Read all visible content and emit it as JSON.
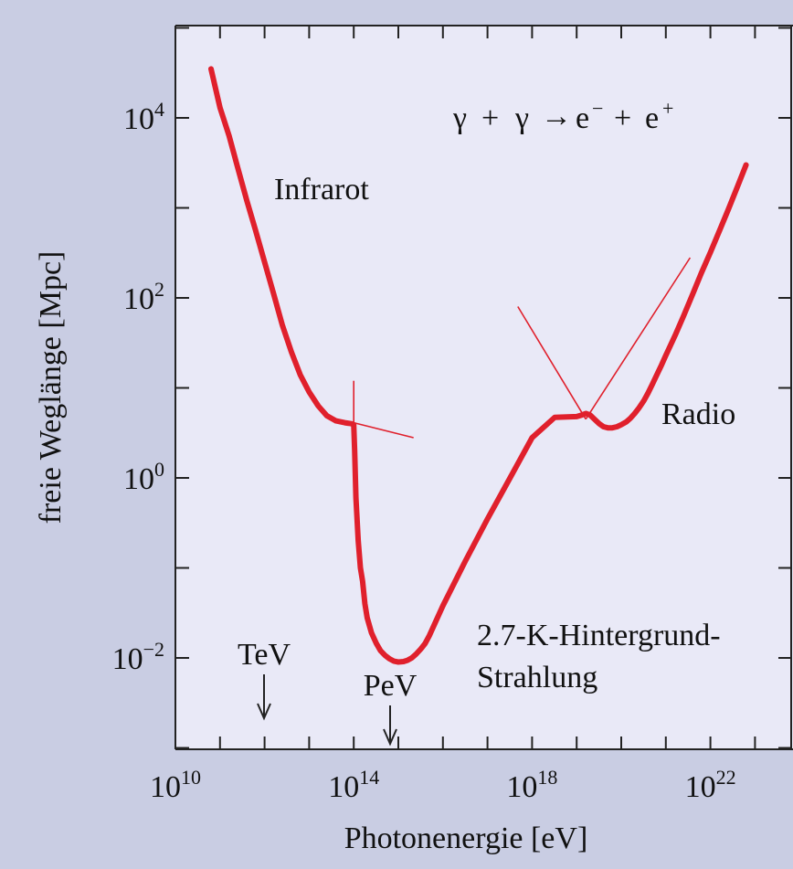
{
  "chart_data": {
    "type": "line",
    "title": "",
    "xlabel": "Photonenergie [eV]",
    "ylabel": "freie Weglänge [Mpc]",
    "x_scale": "log",
    "y_scale": "log",
    "xlim": [
      10000000000.0,
      1e+23
    ],
    "ylim": [
      0.001,
      100000.0
    ],
    "x_ticks": [
      {
        "mantissa": "10",
        "exp": "10"
      },
      {
        "mantissa": "10",
        "exp": "14"
      },
      {
        "mantissa": "10",
        "exp": "18"
      },
      {
        "mantissa": "10",
        "exp": "22"
      }
    ],
    "y_ticks": [
      {
        "mantissa": "10",
        "exp": "4"
      },
      {
        "mantissa": "10",
        "exp": "2"
      },
      {
        "mantissa": "10",
        "exp": "0"
      },
      {
        "mantissa": "10",
        "exp": "−2"
      }
    ],
    "grid": false,
    "line_color": "#e0202c",
    "series": [
      {
        "x": [
          63000000000.0,
          100000000000.0,
          160000000000.0,
          250000000000.0,
          400000000000.0,
          630000000000.0,
          1000000000000.0,
          1600000000000.0,
          2500000000000.0,
          4000000000000.0,
          6300000000000.0,
          10000000000000.0,
          16000000000000.0,
          25000000000000.0,
          40000000000000.0,
          63000000000000.0,
          89000000000000.0,
          100000000000000.0,
          105000000000000.0,
          112000000000000.0,
          126000000000000.0,
          141000000000000.0,
          158000000000000.0,
          178000000000000.0,
          200000000000000.0,
          250000000000000.0,
          320000000000000.0,
          400000000000000.0,
          500000000000000.0,
          630000000000000.0,
          800000000000000.0,
          1000000000000000.0,
          1300000000000000.0,
          1600000000000000.0,
          2000000000000000.0,
          2500000000000000.0,
          3200000000000000.0,
          4000000000000000.0,
          5000000000000000.0,
          1e+16,
          3.2e+16,
          1e+17,
          3.2e+17,
          1e+18,
          3.2e+18,
          1e+19,
          1.3e+19,
          1.6e+19,
          2e+19,
          2.5e+19,
          3.2e+19,
          4e+19,
          5e+19,
          6.3e+19,
          8e+19,
          1e+20,
          1.3e+20,
          1.6e+20,
          2e+20,
          2.5e+20,
          3.2e+20,
          4e+20,
          5e+20,
          6.3e+20,
          8e+20,
          1e+21,
          1.6e+21,
          2.5e+21,
          4e+21,
          6.3e+21,
          1e+22,
          1.6e+22,
          2.5e+22,
          4e+22,
          6.3e+22
        ],
        "y": [
          35000,
          13000,
          6300,
          2800,
          1200,
          560,
          250,
          110,
          50,
          25,
          14,
          9,
          6.3,
          4.9,
          4.3,
          4.1,
          4.0,
          3.9,
          2.0,
          0.6,
          0.2,
          0.1,
          0.071,
          0.04,
          0.028,
          0.019,
          0.0145,
          0.012,
          0.0107,
          0.0098,
          0.0092,
          0.009,
          0.0091,
          0.0094,
          0.01,
          0.011,
          0.0126,
          0.0145,
          0.0178,
          0.038,
          0.12,
          0.35,
          1.0,
          2.8,
          4.7,
          4.8,
          5.0,
          5.2,
          5.0,
          4.5,
          4.0,
          3.7,
          3.6,
          3.6,
          3.7,
          3.9,
          4.2,
          4.6,
          5.2,
          6.0,
          7.2,
          8.8,
          11,
          14,
          18,
          23,
          38,
          63,
          110,
          190,
          320,
          560,
          950,
          1700,
          3000
        ]
      }
    ],
    "tangent_lines": [
      {
        "x": [
          100000000000000.0,
          100000000000000.0
        ],
        "y": [
          12,
          3.7
        ]
      },
      {
        "x": [
          100000000000000.0,
          2200000000000000.0
        ],
        "y": [
          4.1,
          2.8
        ]
      },
      {
        "x": [
          4.8e+17,
          1.6e+19
        ],
        "y": [
          80,
          4.5
        ]
      },
      {
        "x": [
          1.6e+19,
          3.5e+21
        ],
        "y": [
          4.5,
          280
        ]
      }
    ],
    "annotations": {
      "infrared": "Infrarot",
      "radio": "Radio",
      "cmb_line1": "2.7-K-Hintergrund-",
      "cmb_line2": "Strahlung",
      "tev": "TeV",
      "pev": "PeV",
      "reaction_gamma": "γ",
      "reaction_plus": "+",
      "reaction_arrow": "→",
      "reaction_e": "e",
      "reaction_minus": "−",
      "reaction_pos": "+"
    },
    "tev_x": 1000000000000.0,
    "pev_x": 1000000000000000.0
  }
}
